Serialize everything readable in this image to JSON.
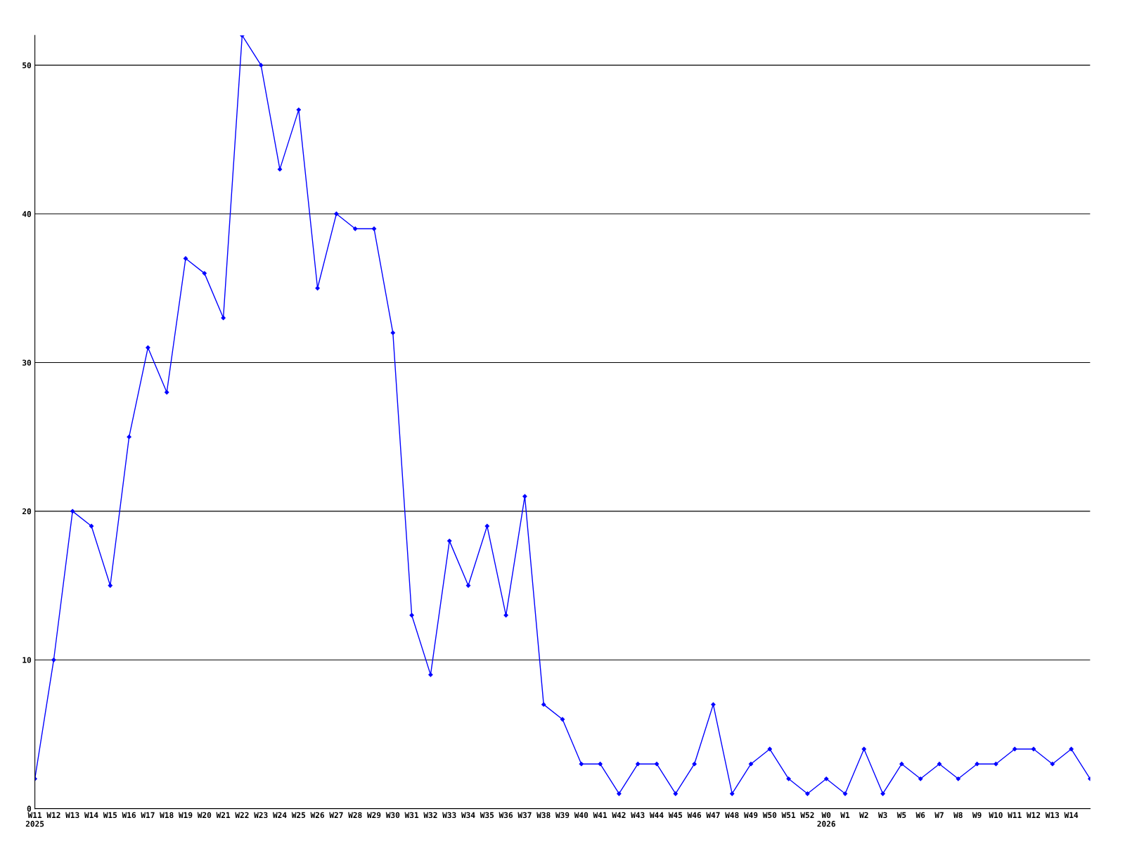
{
  "chart_data": {
    "type": "line",
    "categories": [
      "W11\n2025",
      "W12",
      "W13",
      "W14",
      "W15",
      "W16",
      "W17",
      "W18",
      "W19",
      "W20",
      "W21",
      "W22",
      "W23",
      "W24",
      "W25",
      "W26",
      "W27",
      "W28",
      "W29",
      "W30",
      "W31",
      "W32",
      "W33",
      "W34",
      "W35",
      "W36",
      "W37",
      "W38",
      "W39",
      "W40",
      "W41",
      "W42",
      "W43",
      "W44",
      "W45",
      "W46",
      "W47",
      "W48",
      "W49",
      "W50",
      "W51",
      "W52",
      "W0\n2026",
      "W1",
      "W2",
      "W3",
      "W5",
      "W6",
      "W7",
      "W8",
      "W9",
      "W10",
      "W11",
      "W12",
      "W13",
      "W14",
      null
    ],
    "series": [
      {
        "color": "#0000ff",
        "values": [
          2,
          10,
          20,
          19,
          15,
          25,
          31,
          28,
          37,
          36,
          33,
          52,
          50,
          43,
          47,
          35,
          40,
          39,
          39,
          32,
          13,
          9,
          18,
          15,
          19,
          13,
          21,
          7,
          6,
          3,
          3,
          1,
          3,
          3,
          1,
          3,
          7,
          1,
          3,
          4,
          2,
          1,
          2,
          1,
          4,
          1,
          3,
          2,
          3,
          2,
          3,
          3,
          4,
          4,
          3,
          4,
          2
        ]
      }
    ],
    "ylim": [
      0,
      52
    ],
    "yticks": [
      0,
      10,
      20,
      30,
      40,
      50
    ],
    "grid": "y",
    "marker": "diamond",
    "line_style": "solid"
  }
}
